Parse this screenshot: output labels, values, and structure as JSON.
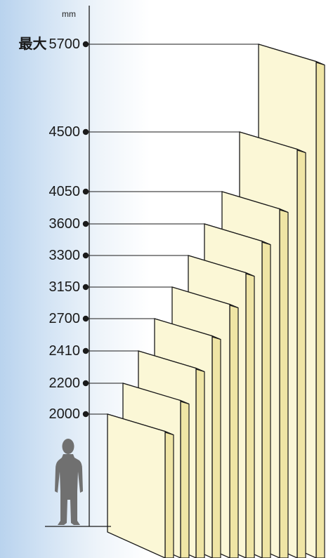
{
  "unit": "mm",
  "max_prefix": "最大",
  "heights": [
    {
      "label": "2000",
      "value": 2000
    },
    {
      "label": "2200",
      "value": 2200
    },
    {
      "label": "2410",
      "value": 2410
    },
    {
      "label": "2700",
      "value": 2700
    },
    {
      "label": "3150",
      "value": 3150
    },
    {
      "label": "3300",
      "value": 3300
    },
    {
      "label": "3600",
      "value": 3600
    },
    {
      "label": "4050",
      "value": 4050
    },
    {
      "label": "4500",
      "value": 4500
    },
    {
      "label": "5700",
      "value": 5700,
      "is_max": true
    }
  ],
  "colors": {
    "panel_front": "#fbf7d6",
    "panel_side": "#efe5a5",
    "panel_top": "#f6f0c4",
    "panel_stroke": "#1a1a1a",
    "line": "#1a1a1a",
    "person": "#707070"
  },
  "person_icon": "person-silhouette-icon"
}
